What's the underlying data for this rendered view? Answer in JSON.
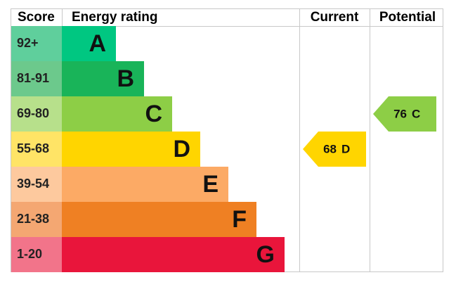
{
  "headers": {
    "score": "Score",
    "rating": "Energy rating",
    "current": "Current",
    "potential": "Potential"
  },
  "bands": [
    {
      "range": "92+",
      "letter": "A",
      "color": "#00c781",
      "tint": "#5fcf9c"
    },
    {
      "range": "81-91",
      "letter": "B",
      "color": "#19b459",
      "tint": "#6cc98c"
    },
    {
      "range": "69-80",
      "letter": "C",
      "color": "#8dce46",
      "tint": "#b7e08b"
    },
    {
      "range": "55-68",
      "letter": "D",
      "color": "#ffd500",
      "tint": "#ffe466"
    },
    {
      "range": "39-54",
      "letter": "E",
      "color": "#fcaa65",
      "tint": "#fdc99e"
    },
    {
      "range": "21-38",
      "letter": "F",
      "color": "#ef8023",
      "tint": "#f4a772"
    },
    {
      "range": "1-20",
      "letter": "G",
      "color": "#e9153b",
      "tint": "#f2748a"
    }
  ],
  "current": {
    "value": 68,
    "letter": "D"
  },
  "potential": {
    "value": 76,
    "letter": "C"
  }
}
